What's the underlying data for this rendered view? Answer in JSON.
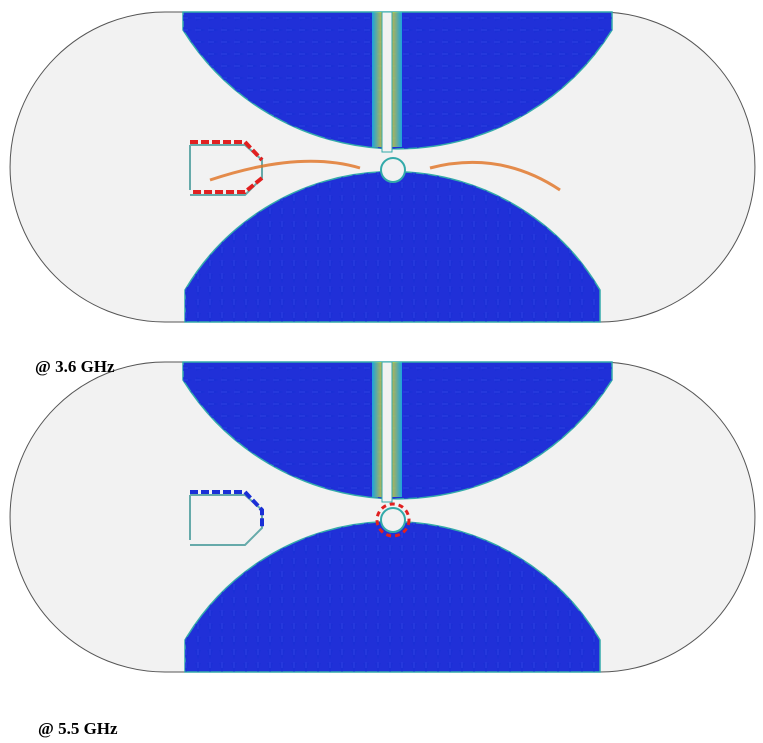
{
  "panels": [
    {
      "label": "@ 3.6 GHz"
    },
    {
      "label": "@ 5.5 GHz"
    }
  ]
}
